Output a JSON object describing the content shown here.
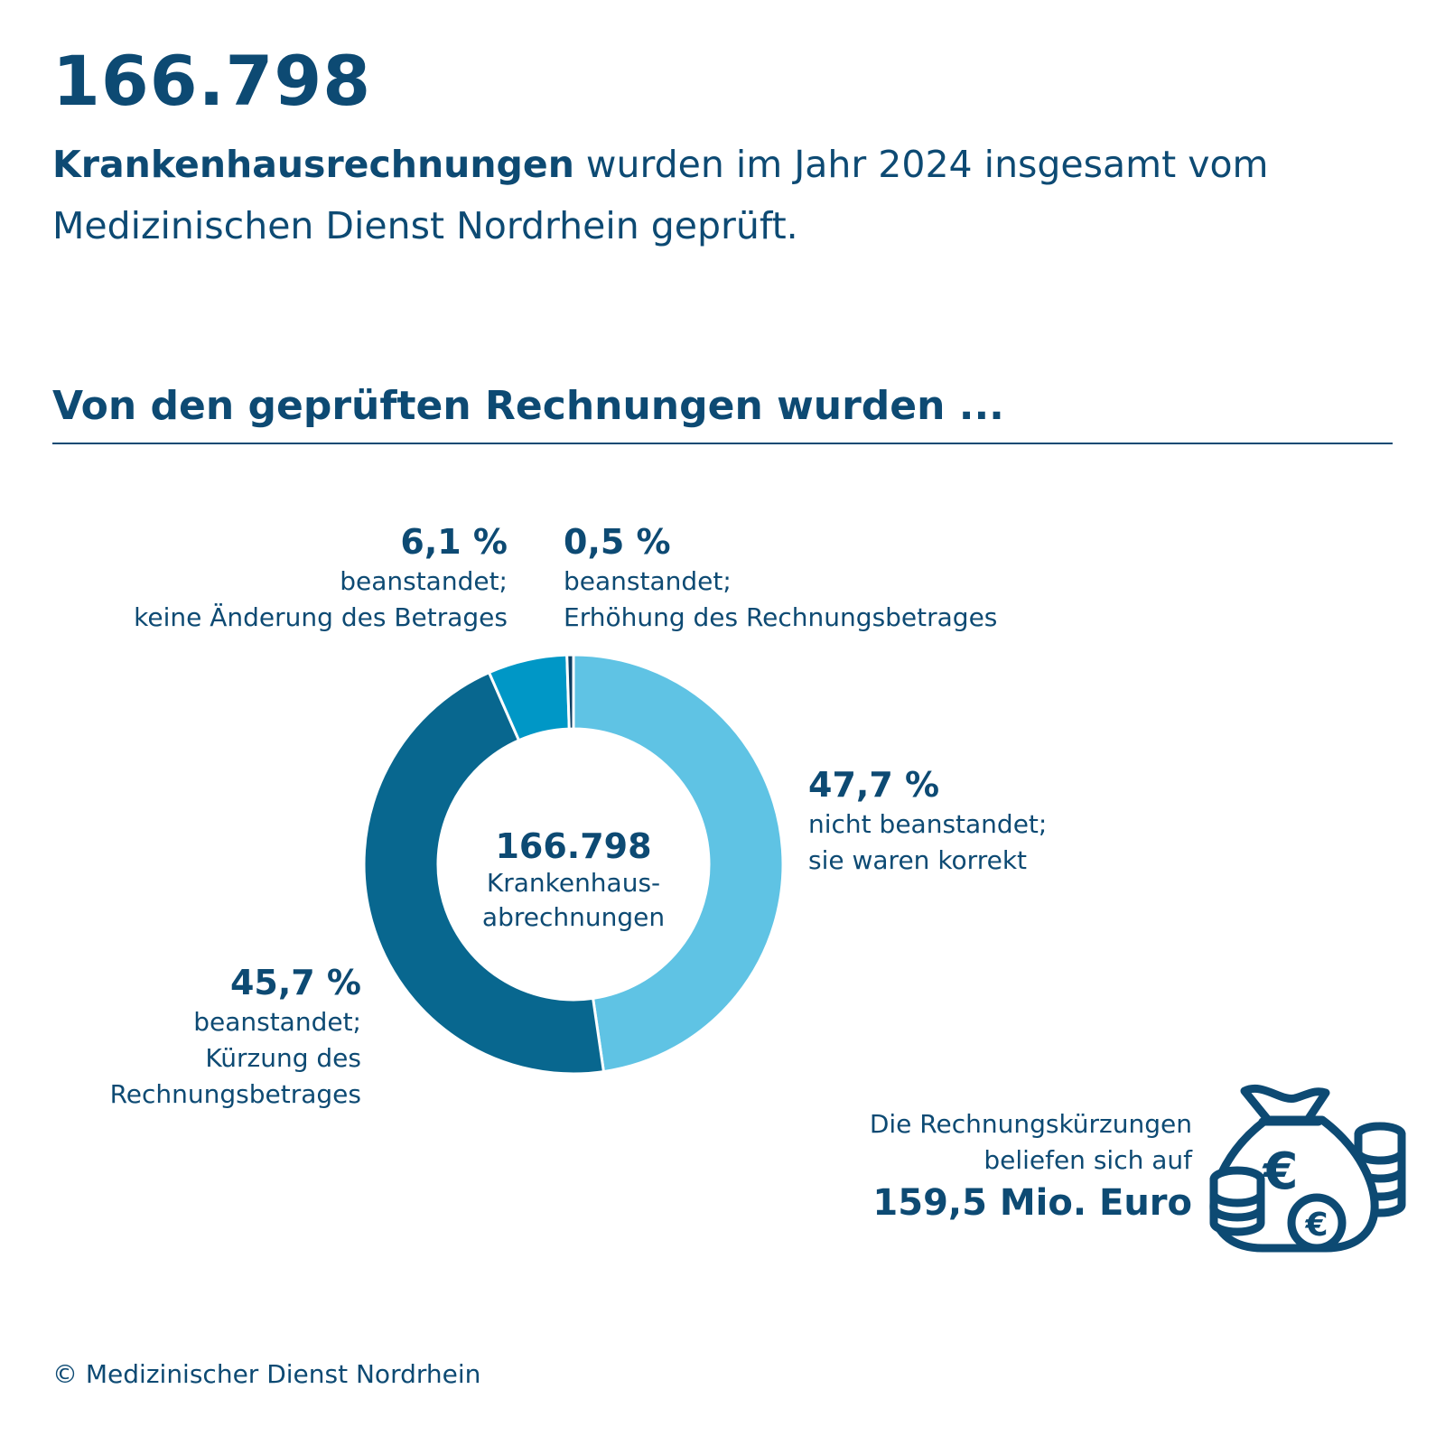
{
  "header": {
    "total": "166.798",
    "intro_bold": "Krankenhausrechnungen",
    "intro_rest": " wurden im Jahr 2024 insgesamt vom Medizinischen Dienst Nordrhein geprüft."
  },
  "section_title": "Von den geprüften Rechnungen wurden ...",
  "center": {
    "number": "166.798",
    "line1": "Krankenhaus-",
    "line2": "abrechnungen"
  },
  "annotations": {
    "correct": {
      "pct": "47,7 %",
      "line1": "nicht beanstandet;",
      "line2": "sie waren korrekt"
    },
    "increase": {
      "pct": "0,5 %",
      "line1": "beanstandet;",
      "line2": "Erhöhung des Rechnungsbetrages"
    },
    "nochange": {
      "pct": "6,1 %",
      "line1": "beanstandet;",
      "line2": "keine Änderung des Betrages"
    },
    "cut": {
      "pct": "45,7 %",
      "line1": "beanstandet;",
      "line2": "Kürzung des",
      "line3": "Rechnungsbetrages"
    }
  },
  "savings": {
    "line1": "Die Rechnungskürzungen",
    "line2": "beliefen sich auf",
    "amount": "159,5 Mio. Euro",
    "icon": "money-bag-euro-icon"
  },
  "copyright": "© Medizinischer Dienst Nordrhein",
  "colors": {
    "text": "#0d4a73",
    "correct": "#5fc3e4",
    "cut": "#08678f",
    "nochange": "#0097c6",
    "increase": "#0d3f63"
  },
  "chart_data": {
    "type": "pie",
    "donut": true,
    "categories": [
      "nicht beanstandet; sie waren korrekt",
      "beanstandet; Kürzung des Rechnungsbetrages",
      "beanstandet; keine Änderung des Betrages",
      "beanstandet; Erhöhung des Rechnungsbetrages"
    ],
    "values": [
      47.7,
      45.7,
      6.1,
      0.5
    ],
    "colors": [
      "#5fc3e4",
      "#08678f",
      "#0097c6",
      "#0d3f63"
    ],
    "total": 166798,
    "title": "Von den geprüften Rechnungen wurden ..."
  }
}
